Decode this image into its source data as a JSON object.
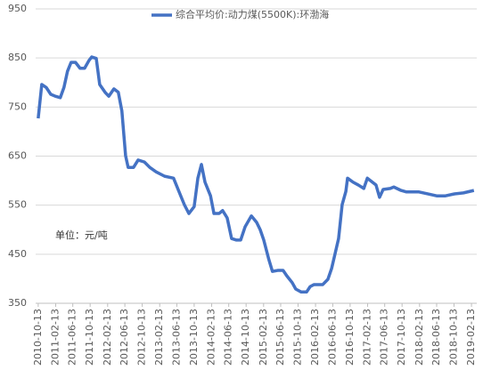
{
  "chart_data": {
    "type": "line",
    "annotation": "单位：元/吨",
    "x": [
      "2010-10-13",
      "2010-11-07",
      "2010-12-08",
      "2011-01-09",
      "2011-02-10",
      "2011-03-17",
      "2011-04-12",
      "2011-05-07",
      "2011-06-01",
      "2011-07-02",
      "2011-08-03",
      "2011-09-04",
      "2011-10-05",
      "2011-10-24",
      "2011-11-25",
      "2011-12-19",
      "2012-01-26",
      "2012-02-21",
      "2012-03-28",
      "2012-04-28",
      "2012-05-23",
      "2012-06-18",
      "2012-07-06",
      "2012-08-13",
      "2012-09-14",
      "2012-10-28",
      "2012-12-05",
      "2013-01-18",
      "2013-03-19",
      "2013-05-21",
      "2013-07-05",
      "2013-08-05",
      "2013-09-06",
      "2013-10-13",
      "2013-11-08",
      "2013-12-03",
      "2013-12-28",
      "2014-02-05",
      "2014-03-01",
      "2014-04-06",
      "2014-05-01",
      "2014-06-02",
      "2014-07-03",
      "2014-08-04",
      "2014-09-05",
      "2014-10-06",
      "2014-11-19",
      "2014-12-26",
      "2015-01-20",
      "2015-02-14",
      "2015-03-22",
      "2015-04-16",
      "2015-05-23",
      "2015-06-30",
      "2015-07-26",
      "2015-09-02",
      "2015-09-27",
      "2015-11-04",
      "2015-12-12",
      "2016-01-06",
      "2016-02-01",
      "2016-04-03",
      "2016-05-10",
      "2016-06-05",
      "2016-06-30",
      "2016-07-24",
      "2016-08-18",
      "2016-09-13",
      "2016-09-25",
      "2016-11-02",
      "2016-12-10",
      "2017-01-17",
      "2017-02-11",
      "2017-03-18",
      "2017-04-13",
      "2017-05-08",
      "2017-06-02",
      "2017-07-22",
      "2017-08-16",
      "2017-10-06",
      "2017-11-13",
      "2018-02-09",
      "2018-04-11",
      "2018-06-13",
      "2018-08-14",
      "2018-10-16",
      "2018-12-18",
      "2019-03-02"
    ],
    "series": [
      {
        "name": "综合平均价:动力煤(5500K):环渤海",
        "color": "#4472c4",
        "values": [
          727,
          796,
          790,
          776,
          772,
          769,
          790,
          823,
          841,
          841,
          829,
          829,
          845,
          852,
          849,
          796,
          780,
          772,
          787,
          780,
          742,
          651,
          627,
          627,
          642,
          638,
          627,
          618,
          609,
          605,
          573,
          551,
          533,
          547,
          605,
          633,
          597,
          569,
          533,
          533,
          539,
          524,
          482,
          479,
          479,
          506,
          528,
          515,
          500,
          479,
          439,
          415,
          417,
          417,
          406,
          392,
          379,
          373,
          373,
          384,
          388,
          388,
          399,
          421,
          452,
          482,
          551,
          578,
          605,
          597,
          591,
          584,
          605,
          597,
          591,
          566,
          582,
          584,
          587,
          580,
          577,
          577,
          573,
          569,
          569,
          573,
          575,
          580
        ]
      }
    ],
    "xlim": [
      "2010-09-25",
      "2019-03-22"
    ],
    "xticks": [
      "2010-10-13",
      "2011-02-13",
      "2011-06-13",
      "2011-10-13",
      "2012-02-13",
      "2012-06-13",
      "2012-10-13",
      "2013-02-13",
      "2013-06-13",
      "2013-10-13",
      "2014-02-13",
      "2014-06-13",
      "2014-10-13",
      "2015-02-13",
      "2015-06-13",
      "2015-10-13",
      "2016-02-13",
      "2016-06-13",
      "2016-10-13",
      "2017-02-13",
      "2017-06-13",
      "2017-10-13",
      "2018-02-13",
      "2018-06-13",
      "2018-10-13",
      "2019-02-13"
    ],
    "ylim": [
      350,
      950
    ],
    "yticks": [
      350,
      450,
      550,
      650,
      750,
      850,
      950
    ],
    "grid": true
  }
}
